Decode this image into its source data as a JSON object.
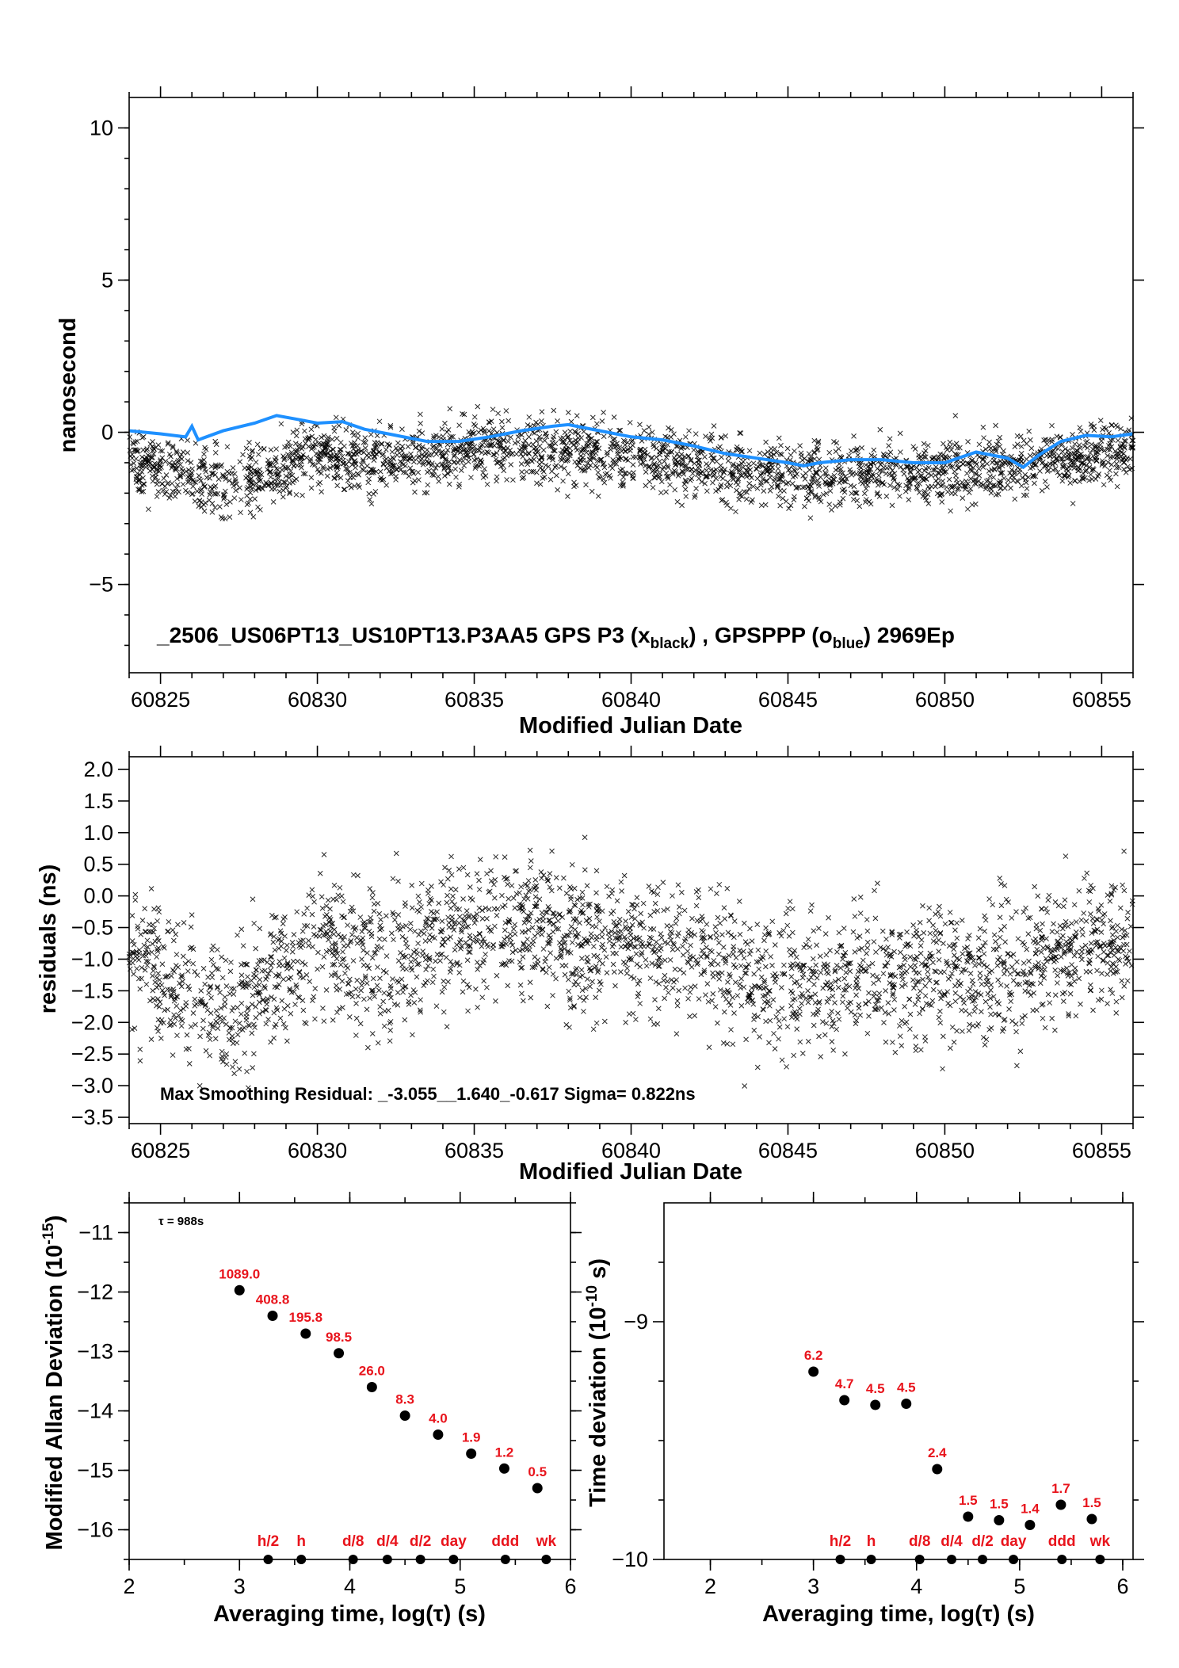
{
  "chart_data": [
    {
      "type": "scatter",
      "id": "phase",
      "ylabel": "nanosecond",
      "xlabel": "Modified Julian Date",
      "xlim": [
        60824,
        60856
      ],
      "ylim": [
        -7.9,
        11
      ],
      "xticks": [
        "60825",
        "60830",
        "60835",
        "60840",
        "60845",
        "60850",
        "60855"
      ],
      "yticks": [
        "10",
        "5",
        "0",
        "−5"
      ],
      "annotation_main": "_2506_US06PT13_US10PT13.P3AA5     GPS P3 (x",
      "annotation_sub1": "black",
      "annotation_mid": ") ,  GPSPPP (o",
      "annotation_sub2": "blue",
      "annotation_end": ")  2969Ep",
      "colors": {
        "scatter": "#000000",
        "line": "#1e90ff"
      },
      "series": [
        {
          "marker": "x",
          "trend": [
            [
              60824,
              -0.9
            ],
            [
              60826,
              -1.5
            ],
            [
              60827,
              -1.8
            ],
            [
              60828.5,
              -1.3
            ],
            [
              60830,
              -0.7
            ],
            [
              60832,
              -1.0
            ],
            [
              60834,
              -0.6
            ],
            [
              60836,
              -0.4
            ],
            [
              60838,
              -0.6
            ],
            [
              60840,
              -0.8
            ],
            [
              60842,
              -1.0
            ],
            [
              60844,
              -1.3
            ],
            [
              60846,
              -1.4
            ],
            [
              60848,
              -1.2
            ],
            [
              60850,
              -1.3
            ],
            [
              60852,
              -1.1
            ],
            [
              60854,
              -0.8
            ],
            [
              60856,
              -0.6
            ]
          ]
        },
        {
          "marker": "line",
          "points": [
            [
              60824,
              0.05
            ],
            [
              60825,
              -0.05
            ],
            [
              60825.8,
              -0.15
            ],
            [
              60826,
              0.2
            ],
            [
              60826.2,
              -0.25
            ],
            [
              60827,
              0.05
            ],
            [
              60828,
              0.3
            ],
            [
              60828.7,
              0.55
            ],
            [
              60829.5,
              0.4
            ],
            [
              60830,
              0.3
            ],
            [
              60830.8,
              0.35
            ],
            [
              60831.5,
              0.1
            ],
            [
              60832.5,
              -0.1
            ],
            [
              60833.5,
              -0.3
            ],
            [
              60834.5,
              -0.3
            ],
            [
              60835.5,
              -0.15
            ],
            [
              60836.5,
              0.05
            ],
            [
              60837.5,
              0.2
            ],
            [
              60838,
              0.25
            ],
            [
              60839,
              0.05
            ],
            [
              60840,
              -0.15
            ],
            [
              60841,
              -0.25
            ],
            [
              60842,
              -0.45
            ],
            [
              60843,
              -0.7
            ],
            [
              60844,
              -0.85
            ],
            [
              60845,
              -1.0
            ],
            [
              60845.5,
              -1.1
            ],
            [
              60846,
              -1.0
            ],
            [
              60847,
              -0.9
            ],
            [
              60848,
              -0.9
            ],
            [
              60849,
              -1.0
            ],
            [
              60850,
              -1.0
            ],
            [
              60851,
              -0.65
            ],
            [
              60852,
              -0.85
            ],
            [
              60852.5,
              -1.15
            ],
            [
              60853,
              -0.75
            ],
            [
              60853.7,
              -0.3
            ],
            [
              60854.5,
              -0.1
            ],
            [
              60855.3,
              -0.15
            ],
            [
              60856,
              -0.05
            ]
          ]
        }
      ]
    },
    {
      "type": "scatter",
      "id": "residuals",
      "ylabel": "residuals (ns)",
      "xlabel": "Modified Julian Date",
      "xlim": [
        60824,
        60856
      ],
      "ylim": [
        -3.6,
        2.2
      ],
      "xticks": [
        "60825",
        "60830",
        "60835",
        "60840",
        "60845",
        "60850",
        "60855"
      ],
      "yticks": [
        "2.0",
        "1.5",
        "1.0",
        "0.5",
        "0.0",
        "−0.5",
        "−1.0",
        "−1.5",
        "−2.0",
        "−2.5",
        "−3.0",
        "−3.5"
      ],
      "annotation": "Max Smoothing Residual: _-3.055__1.640_-0.617  Sigma= 0.822ns"
    },
    {
      "type": "scatter",
      "id": "mdev",
      "ylabel": "Modified Allan Deviation (10",
      "ylabel_exp": "-15",
      "ylabel_close": ")",
      "xlabel": "Averaging time, log(τ) (s)",
      "xlim": [
        2,
        6
      ],
      "ylim": [
        -16.5,
        -10.5
      ],
      "xticks": [
        "2",
        "3",
        "4",
        "5",
        "6"
      ],
      "yticks": [
        "−11",
        "−12",
        "−13",
        "−14",
        "−15",
        "−16"
      ],
      "tau_note": "τ = 988s",
      "points": [
        {
          "x": 3.0,
          "y": -11.97,
          "label": "1089.0"
        },
        {
          "x": 3.3,
          "y": -12.4,
          "label": "408.8"
        },
        {
          "x": 3.6,
          "y": -12.7,
          "label": "195.8"
        },
        {
          "x": 3.9,
          "y": -13.03,
          "label": "98.5"
        },
        {
          "x": 4.2,
          "y": -13.6,
          "label": "26.0"
        },
        {
          "x": 4.5,
          "y": -14.08,
          "label": "8.3"
        },
        {
          "x": 4.8,
          "y": -14.4,
          "label": "4.0"
        },
        {
          "x": 5.1,
          "y": -14.72,
          "label": "1.9"
        },
        {
          "x": 5.4,
          "y": -14.97,
          "label": "1.2"
        },
        {
          "x": 5.7,
          "y": -15.3,
          "label": "0.5"
        }
      ],
      "markers": [
        {
          "x": 3.26,
          "label": "h/2"
        },
        {
          "x": 3.56,
          "label": "h"
        },
        {
          "x": 4.03,
          "label": "d/8"
        },
        {
          "x": 4.34,
          "label": "d/4"
        },
        {
          "x": 4.64,
          "label": "d/2"
        },
        {
          "x": 4.94,
          "label": "day"
        },
        {
          "x": 5.41,
          "label": "ddd"
        },
        {
          "x": 5.78,
          "label": "wk"
        }
      ]
    },
    {
      "type": "scatter",
      "id": "tdev",
      "ylabel": "Time deviation (10",
      "ylabel_exp": "-10",
      "ylabel_close": " s)",
      "xlabel": "Averaging time, log(τ) (s)",
      "xlim": [
        1.55,
        6.1
      ],
      "ylim": [
        -10,
        -8.5
      ],
      "xticks": [
        "2",
        "3",
        "4",
        "5",
        "6"
      ],
      "yticks": [
        "−9",
        "−10"
      ],
      "points": [
        {
          "x": 3.0,
          "y": -9.21,
          "label": "6.2"
        },
        {
          "x": 3.3,
          "y": -9.33,
          "label": "4.7"
        },
        {
          "x": 3.6,
          "y": -9.35,
          "label": "4.5"
        },
        {
          "x": 3.9,
          "y": -9.345,
          "label": "4.5"
        },
        {
          "x": 4.2,
          "y": -9.62,
          "label": "2.4"
        },
        {
          "x": 4.5,
          "y": -9.82,
          "label": "1.5"
        },
        {
          "x": 4.8,
          "y": -9.835,
          "label": "1.5"
        },
        {
          "x": 5.1,
          "y": -9.855,
          "label": "1.4"
        },
        {
          "x": 5.4,
          "y": -9.77,
          "label": "1.7"
        },
        {
          "x": 5.7,
          "y": -9.83,
          "label": "1.5"
        }
      ],
      "markers": [
        {
          "x": 3.26,
          "label": "h/2"
        },
        {
          "x": 3.56,
          "label": "h"
        },
        {
          "x": 4.03,
          "label": "d/8"
        },
        {
          "x": 4.34,
          "label": "d/4"
        },
        {
          "x": 4.64,
          "label": "d/2"
        },
        {
          "x": 4.94,
          "label": "day"
        },
        {
          "x": 5.41,
          "label": "ddd"
        },
        {
          "x": 5.78,
          "label": "wk"
        }
      ]
    }
  ]
}
